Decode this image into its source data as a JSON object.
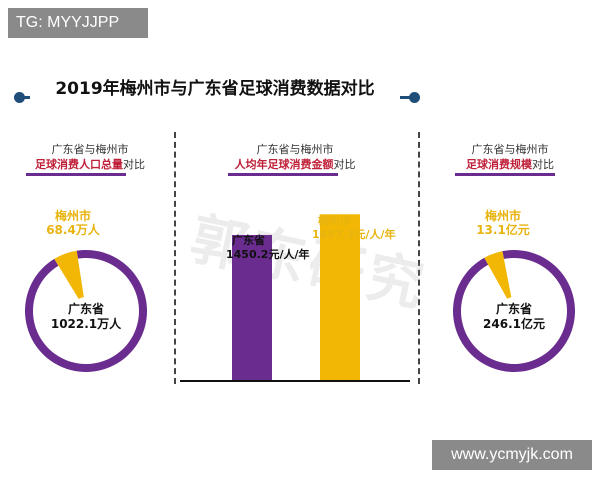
{
  "badges": {
    "tg": "TG: MYYJJPP",
    "site": "www.ycmyjk.com"
  },
  "title": "2019年梅州市与广东省足球消费数据对比",
  "watermark": "郭东研究",
  "colors": {
    "purple": "#6a2c8f",
    "gold": "#f2b705",
    "title_navy": "#1f4e79",
    "highlight_red": "#c0213a"
  },
  "chart_data": [
    {
      "type": "pie",
      "header_line1": "广东省与梅州市",
      "header_highlight": "足球消费人口总量",
      "header_suffix": "对比",
      "slices": [
        {
          "name": "广东省",
          "value": 1022.1,
          "label": "1022.1万人",
          "color": "#6a2c8f"
        },
        {
          "name": "梅州市",
          "value": 68.4,
          "label": "68.4万人",
          "percent_label": "6.7%",
          "color": "#f2b705"
        }
      ]
    },
    {
      "type": "bar",
      "header_line1": "广东省与梅州市",
      "header_highlight": "人均年足球消费金额",
      "header_suffix": "对比",
      "categories": [
        "广东省",
        "梅州市"
      ],
      "values": [
        1450.2,
        1657.3
      ],
      "value_labels": [
        "1450.2元/人/年",
        "1657.3元/人/年"
      ],
      "colors": [
        "#6a2c8f",
        "#f2b705"
      ],
      "ylim": [
        0,
        2200
      ]
    },
    {
      "type": "pie",
      "header_line1": "广东省与梅州市",
      "header_highlight": "足球消费规模",
      "header_suffix": "对比",
      "slices": [
        {
          "name": "广东省",
          "value": 246.1,
          "label": "246.1亿元",
          "color": "#6a2c8f"
        },
        {
          "name": "梅州市",
          "value": 13.1,
          "label": "13.1亿元",
          "percent_label": "5.3%",
          "color": "#f2b705"
        }
      ]
    }
  ]
}
